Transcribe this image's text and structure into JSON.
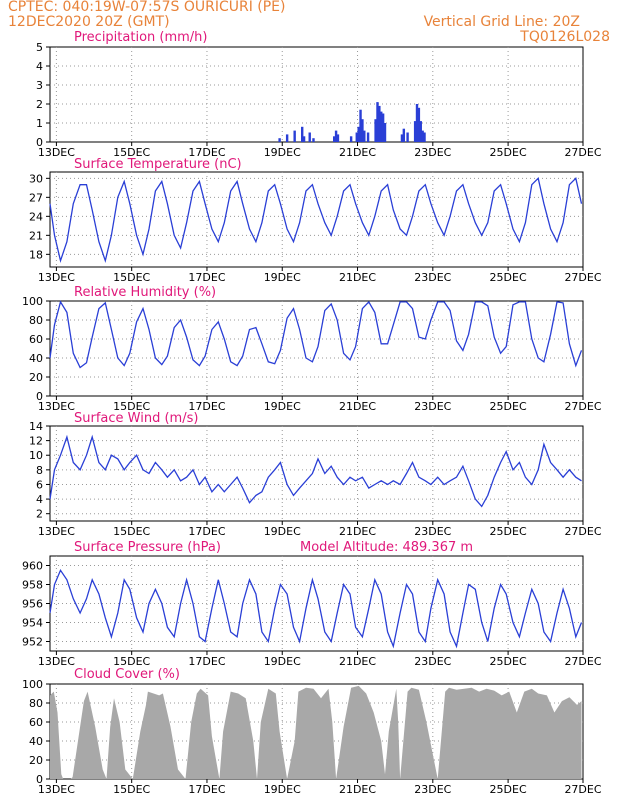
{
  "header": {
    "line1_left": "CPTEC:   040:19W-07:57S   OURICURI (PE)",
    "line2_left": "12DEC2020 20Z (GMT)",
    "line1_right": "Vertical Grid Line: 20Z",
    "line2_right": "TQ0126L028"
  },
  "colors": {
    "header": "#e8833a",
    "panel_title": "#e0187a",
    "series": "#2a3fd6",
    "cloud_fill": "#a8a8a8",
    "axis": "#000000",
    "grid": "#9a9a9a"
  },
  "x_tick_labels": [
    "13DEC",
    "15DEC",
    "17DEC",
    "19DEC",
    "21DEC",
    "23DEC",
    "25DEC",
    "27DEC"
  ],
  "extra_annotation": "Model Altitude: 489.367 m",
  "chart_data": [
    {
      "id": "precip",
      "type": "bar",
      "title": "Precipitation (mm/h)",
      "ylim": [
        0,
        5
      ],
      "yticks": [
        0,
        1,
        2,
        3,
        4,
        5
      ],
      "grid": true,
      "x_unit": "days since 12DEC2020 20Z",
      "bars": [
        [
          6.1,
          0.2
        ],
        [
          6.3,
          0.4
        ],
        [
          6.5,
          0.6
        ],
        [
          6.7,
          0.8
        ],
        [
          6.75,
          0.3
        ],
        [
          6.9,
          0.5
        ],
        [
          7.0,
          0.2
        ],
        [
          7.55,
          0.3
        ],
        [
          7.6,
          0.6
        ],
        [
          7.65,
          0.4
        ],
        [
          8.0,
          0.3
        ],
        [
          8.15,
          0.5
        ],
        [
          8.2,
          0.8
        ],
        [
          8.25,
          1.7
        ],
        [
          8.3,
          1.2
        ],
        [
          8.35,
          0.6
        ],
        [
          8.45,
          0.5
        ],
        [
          8.65,
          1.2
        ],
        [
          8.7,
          2.1
        ],
        [
          8.75,
          1.9
        ],
        [
          8.8,
          1.6
        ],
        [
          8.85,
          1.5
        ],
        [
          8.9,
          1.0
        ],
        [
          9.35,
          0.4
        ],
        [
          9.4,
          0.7
        ],
        [
          9.5,
          0.5
        ],
        [
          9.7,
          1.1
        ],
        [
          9.75,
          2.0
        ],
        [
          9.8,
          1.8
        ],
        [
          9.85,
          1.1
        ],
        [
          9.9,
          0.6
        ],
        [
          9.95,
          0.5
        ]
      ]
    },
    {
      "id": "temperature",
      "type": "line",
      "title": "Surface Temperature (nC)",
      "ylim": [
        16,
        31
      ],
      "yticks": [
        18,
        21,
        24,
        27,
        30
      ],
      "grid": true,
      "tick_labels": true,
      "x": [
        0,
        0.12,
        0.28,
        0.45,
        0.62,
        0.8,
        0.97,
        1.12,
        1.3,
        1.47,
        1.63,
        1.8,
        1.97,
        2.12,
        2.3,
        2.47,
        2.63,
        2.8,
        2.97,
        3.12,
        3.3,
        3.47,
        3.63,
        3.8,
        3.97,
        4.12,
        4.3,
        4.47,
        4.63,
        4.8,
        4.97,
        5.12,
        5.3,
        5.47,
        5.63,
        5.8,
        5.97,
        6.12,
        6.3,
        6.47,
        6.63,
        6.8,
        6.97,
        7.12,
        7.3,
        7.47,
        7.63,
        7.8,
        7.97,
        8.12,
        8.3,
        8.47,
        8.63,
        8.8,
        8.97,
        9.12,
        9.3,
        9.47,
        9.63,
        9.8,
        9.97,
        10.12,
        10.3,
        10.47,
        10.63,
        10.8,
        10.97,
        11.12,
        11.3,
        11.47,
        11.63,
        11.8,
        11.97,
        12.12,
        12.3,
        12.47,
        12.63,
        12.8,
        12.97,
        13.12,
        13.3,
        13.47,
        13.63,
        13.8,
        13.97,
        14.12
      ],
      "values": [
        26,
        21,
        17,
        20,
        26,
        29,
        29,
        25,
        20,
        17,
        21,
        27,
        29.5,
        26,
        21,
        18,
        22,
        28,
        29.5,
        26,
        21,
        19,
        23,
        28,
        29.5,
        26,
        22,
        20,
        23,
        28,
        29.5,
        26,
        22,
        20,
        23,
        28,
        29,
        26,
        22,
        20,
        23,
        28,
        29,
        26,
        23,
        21,
        24,
        28,
        29,
        26,
        23,
        21,
        24,
        28,
        29,
        25,
        22,
        21,
        24,
        28,
        29,
        26,
        23,
        21,
        24,
        28,
        29,
        26,
        23,
        21,
        23,
        28,
        29,
        26,
        22,
        20,
        23,
        29,
        30,
        26,
        22,
        20,
        23,
        29,
        30,
        26
      ]
    },
    {
      "id": "humidity",
      "type": "line",
      "title": "Relative Humidity (%)",
      "ylim": [
        0,
        100
      ],
      "yticks": [
        0,
        20,
        40,
        60,
        80,
        100
      ],
      "grid": true,
      "tick_labels": true,
      "x": [
        0,
        0.12,
        0.28,
        0.45,
        0.62,
        0.8,
        0.97,
        1.12,
        1.3,
        1.47,
        1.63,
        1.8,
        1.97,
        2.12,
        2.3,
        2.47,
        2.63,
        2.8,
        2.97,
        3.12,
        3.3,
        3.47,
        3.63,
        3.8,
        3.97,
        4.12,
        4.3,
        4.47,
        4.63,
        4.8,
        4.97,
        5.12,
        5.3,
        5.47,
        5.63,
        5.8,
        5.97,
        6.12,
        6.3,
        6.47,
        6.63,
        6.8,
        6.97,
        7.12,
        7.3,
        7.47,
        7.63,
        7.8,
        7.97,
        8.12,
        8.3,
        8.47,
        8.63,
        8.8,
        8.97,
        9.12,
        9.3,
        9.47,
        9.63,
        9.8,
        9.97,
        10.12,
        10.3,
        10.47,
        10.63,
        10.8,
        10.97,
        11.12,
        11.3,
        11.47,
        11.63,
        11.8,
        11.97,
        12.12,
        12.3,
        12.47,
        12.63,
        12.8,
        12.97,
        13.12,
        13.3,
        13.47,
        13.63,
        13.8,
        13.97,
        14.12
      ],
      "values": [
        40,
        75,
        99,
        88,
        45,
        30,
        35,
        62,
        92,
        98,
        70,
        40,
        32,
        45,
        78,
        92,
        70,
        40,
        33,
        42,
        72,
        80,
        62,
        38,
        32,
        42,
        70,
        78,
        60,
        36,
        32,
        42,
        70,
        72,
        55,
        36,
        34,
        48,
        82,
        92,
        70,
        40,
        36,
        52,
        90,
        97,
        80,
        45,
        38,
        52,
        92,
        99,
        88,
        55,
        55,
        75,
        99,
        99,
        92,
        62,
        60,
        80,
        99,
        99,
        90,
        58,
        48,
        65,
        99,
        99,
        95,
        62,
        45,
        52,
        96,
        99,
        99,
        60,
        40,
        36,
        65,
        99,
        98,
        55,
        32,
        48
      ]
    },
    {
      "id": "wind",
      "type": "line",
      "title": "Surface Wind (m/s)",
      "ylim": [
        1,
        14
      ],
      "yticks": [
        2,
        4,
        6,
        8,
        10,
        12,
        14
      ],
      "grid": true,
      "tick_labels": true,
      "x": [
        0,
        0.12,
        0.28,
        0.45,
        0.62,
        0.8,
        0.97,
        1.12,
        1.3,
        1.47,
        1.63,
        1.8,
        1.97,
        2.12,
        2.3,
        2.47,
        2.63,
        2.8,
        2.97,
        3.12,
        3.3,
        3.47,
        3.63,
        3.8,
        3.97,
        4.12,
        4.3,
        4.47,
        4.63,
        4.8,
        4.97,
        5.12,
        5.3,
        5.47,
        5.63,
        5.8,
        5.97,
        6.12,
        6.3,
        6.47,
        6.63,
        6.8,
        6.97,
        7.12,
        7.3,
        7.47,
        7.63,
        7.8,
        7.97,
        8.12,
        8.3,
        8.47,
        8.63,
        8.8,
        8.97,
        9.12,
        9.3,
        9.47,
        9.63,
        9.8,
        9.97,
        10.12,
        10.3,
        10.47,
        10.63,
        10.8,
        10.97,
        11.12,
        11.3,
        11.47,
        11.63,
        11.8,
        11.97,
        12.12,
        12.3,
        12.47,
        12.63,
        12.8,
        12.97,
        13.12,
        13.3,
        13.47,
        13.63,
        13.8,
        13.97,
        14.12
      ],
      "values": [
        4,
        8,
        10,
        12.5,
        9,
        8,
        10,
        12.5,
        9,
        8,
        10,
        9.5,
        8,
        9,
        10,
        8,
        7.5,
        9,
        8,
        7,
        8,
        6.5,
        7,
        8,
        6,
        7,
        5,
        6,
        5,
        6,
        7,
        5.5,
        3.5,
        4.5,
        5,
        7,
        8,
        9,
        6,
        4.5,
        5.5,
        6.5,
        7.5,
        9.5,
        7.5,
        8.5,
        7,
        6,
        7,
        6.5,
        7,
        5.5,
        6,
        6.5,
        6,
        6.5,
        6,
        7.5,
        9,
        7,
        6.5,
        6,
        7,
        6,
        6.5,
        7,
        8.5,
        6.5,
        4,
        3,
        4.5,
        7,
        9,
        10.5,
        8,
        9,
        7,
        6,
        8,
        11.5,
        9,
        8,
        7,
        8,
        7,
        6.5
      ]
    },
    {
      "id": "pressure",
      "type": "line",
      "title": "Surface Pressure (hPa)",
      "ylim": [
        951,
        961
      ],
      "yticks": [
        952,
        954,
        956,
        958,
        960
      ],
      "grid": true,
      "tick_labels": true,
      "x": [
        0,
        0.12,
        0.28,
        0.45,
        0.62,
        0.8,
        0.97,
        1.12,
        1.3,
        1.47,
        1.63,
        1.8,
        1.97,
        2.12,
        2.3,
        2.47,
        2.63,
        2.8,
        2.97,
        3.12,
        3.3,
        3.47,
        3.63,
        3.8,
        3.97,
        4.12,
        4.3,
        4.47,
        4.63,
        4.8,
        4.97,
        5.12,
        5.3,
        5.47,
        5.63,
        5.8,
        5.97,
        6.12,
        6.3,
        6.47,
        6.63,
        6.8,
        6.97,
        7.12,
        7.3,
        7.47,
        7.63,
        7.8,
        7.97,
        8.12,
        8.3,
        8.47,
        8.63,
        8.8,
        8.97,
        9.12,
        9.3,
        9.47,
        9.63,
        9.8,
        9.97,
        10.12,
        10.3,
        10.47,
        10.63,
        10.8,
        10.97,
        11.12,
        11.3,
        11.47,
        11.63,
        11.8,
        11.97,
        12.12,
        12.3,
        12.47,
        12.63,
        12.8,
        12.97,
        13.12,
        13.3,
        13.47,
        13.63,
        13.8,
        13.97,
        14.12
      ],
      "values": [
        955,
        958,
        959.5,
        958.5,
        956.5,
        955,
        956.5,
        958.5,
        957,
        954.5,
        952.5,
        955,
        958.5,
        957.5,
        954.5,
        953,
        956,
        957.5,
        956,
        953.5,
        952.5,
        956,
        958.5,
        956,
        952.5,
        952,
        955.5,
        958.5,
        956,
        953,
        952.5,
        956,
        958.5,
        957,
        953,
        952,
        955.5,
        958,
        957,
        953.5,
        952,
        955.5,
        958.5,
        956.5,
        953,
        952,
        955,
        958,
        957,
        953.5,
        952.5,
        955.5,
        958.5,
        957,
        953,
        951.5,
        955,
        958,
        957,
        953,
        952,
        955.5,
        958.5,
        957,
        953,
        951.5,
        955,
        958,
        957.5,
        954,
        952,
        955.5,
        958,
        957,
        954,
        952.5,
        955,
        957.5,
        956,
        953,
        952,
        955,
        957.5,
        955.5,
        952.5,
        954
      ]
    },
    {
      "id": "cloud",
      "type": "area",
      "title": "Cloud Cover (%)",
      "ylim": [
        0,
        100
      ],
      "yticks": [
        0,
        20,
        40,
        60,
        80,
        100
      ],
      "grid": true,
      "tick_labels": true,
      "x": [
        0,
        0.1,
        0.2,
        0.3,
        0.35,
        0.55,
        0.6,
        0.9,
        1.0,
        1.2,
        1.4,
        1.5,
        1.6,
        1.7,
        1.85,
        2.0,
        2.2,
        2.4,
        2.55,
        2.6,
        2.9,
        3.0,
        3.2,
        3.4,
        3.6,
        3.75,
        3.9,
        4.0,
        4.2,
        4.3,
        4.5,
        4.6,
        4.8,
        5.0,
        5.2,
        5.4,
        5.5,
        5.6,
        5.8,
        6.0,
        6.1,
        6.3,
        6.5,
        6.6,
        6.8,
        7.0,
        7.2,
        7.4,
        7.5,
        7.6,
        7.8,
        8.0,
        8.2,
        8.4,
        8.6,
        8.8,
        8.9,
        9.0,
        9.2,
        9.25,
        9.3,
        9.5,
        9.6,
        9.8,
        10.0,
        10.3,
        10.5,
        10.6,
        10.8,
        11.0,
        11.2,
        11.4,
        11.6,
        11.8,
        12.0,
        12.2,
        12.4,
        12.6,
        12.8,
        12.97,
        13.2,
        13.4,
        13.6,
        13.8,
        14.0,
        14.12
      ],
      "values": [
        88,
        92,
        70,
        5,
        0,
        0,
        2,
        82,
        92,
        55,
        10,
        0,
        55,
        85,
        60,
        10,
        0,
        50,
        78,
        92,
        88,
        90,
        55,
        10,
        0,
        60,
        90,
        95,
        88,
        45,
        0,
        50,
        92,
        90,
        85,
        40,
        0,
        60,
        95,
        90,
        50,
        0,
        40,
        92,
        96,
        95,
        85,
        95,
        60,
        0,
        55,
        96,
        98,
        90,
        70,
        40,
        5,
        50,
        95,
        60,
        0,
        92,
        96,
        94,
        60,
        0,
        92,
        96,
        94,
        95,
        96,
        92,
        95,
        93,
        88,
        92,
        70,
        92,
        95,
        90,
        88,
        70,
        82,
        86,
        78,
        82
      ]
    }
  ]
}
